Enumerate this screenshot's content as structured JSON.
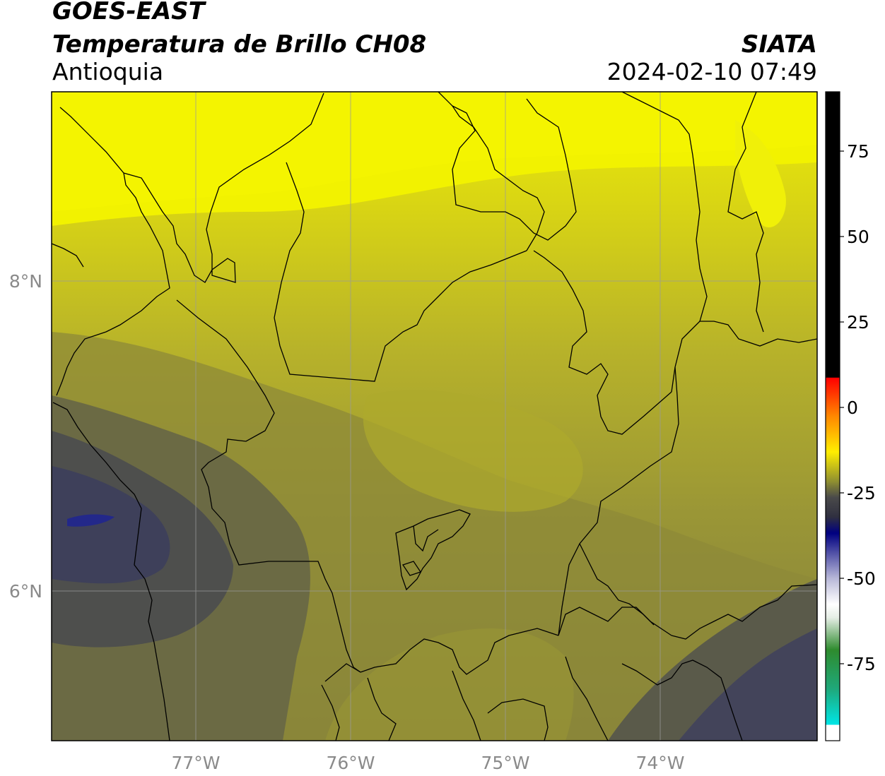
{
  "header": {
    "satellite": "GOES-EAST",
    "product": "Temperatura de Brillo CH08",
    "region": "Antioquia",
    "source": "SIATA",
    "datetime": "2024-02-10 07:49"
  },
  "map": {
    "lon_ticks": [
      "77°W",
      "76°W",
      "75°W",
      "74°W"
    ],
    "lat_ticks": [
      "8°N",
      "6°N"
    ],
    "grid": true,
    "colors": {
      "bright_yellow": "#f2f200",
      "yellow_olive": "#c9c21f",
      "olive": "#a9a52e",
      "dark_olive": "#7b773f",
      "slate": "#55554d",
      "navy_slate": "#3b3d58",
      "deep_blue": "#23288a"
    }
  },
  "colorbar": {
    "tick_labels": [
      "75",
      "50",
      "25",
      "0",
      "-25",
      "-50",
      "-75"
    ],
    "tick_values": [
      75,
      50,
      25,
      0,
      -25,
      -50,
      -75
    ],
    "colors": {
      "hot": "#000000",
      "red": "#ff0000",
      "orange": "#ff9900",
      "yellow": "#ffff00",
      "gray": "#4a4a4a",
      "navy": "#000080",
      "white": "#ffffff",
      "green": "#228b22",
      "cyan": "#00e5e5"
    }
  }
}
